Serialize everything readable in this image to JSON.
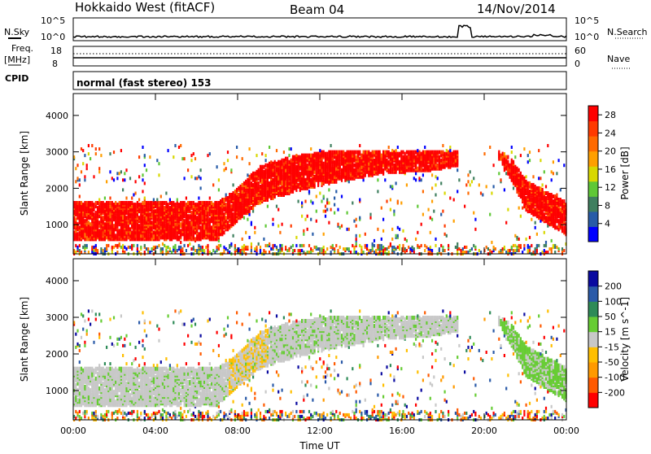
{
  "header": {
    "station": "Hokkaido West (fitACF)",
    "beam": "Beam 04",
    "date": "14/Nov/2014"
  },
  "strips": {
    "nsky_label": "N.Sky",
    "nsky_ticks": [
      "10^5",
      "10^0"
    ],
    "nsearch_label": "N.Search",
    "nsearch_ticks": [
      "10^5",
      "10^0"
    ],
    "freq_label": "Freq.",
    "freq_unit": "[MHz]",
    "freq_ticks": [
      "18",
      "8"
    ],
    "nave_label": "Nave",
    "nave_ticks": [
      "60",
      "0"
    ],
    "cpid_label": "CPID",
    "cpid_value": "normal (fast stereo) 153"
  },
  "colors": {
    "power_scale": [
      "#0000ff",
      "#285ca8",
      "#3f7f5f",
      "#5fc836",
      "#d8d800",
      "#ff9f00",
      "#ff6a00",
      "#ff3a00",
      "#ff0000"
    ],
    "velocity_scale": [
      "#ff0000",
      "#ff5a00",
      "#ff9a00",
      "#ffbf00",
      "#c8c8c8",
      "#66cc33",
      "#2e8b57",
      "#2a5aa8",
      "#0a0aa0"
    ],
    "axis": "#000000"
  },
  "chart_data": [
    {
      "type": "heatmap",
      "panel": "power",
      "ylabel": "Slant Range [km]",
      "yticks": [
        "1000",
        "2000",
        "3000",
        "4000"
      ],
      "ylim": [
        200,
        4600
      ],
      "xticks": [
        "00:00",
        "04:00",
        "08:00",
        "12:00",
        "16:00",
        "20:00",
        "00:00"
      ],
      "xlim_hours": [
        0,
        24
      ],
      "colorbar_label": "Power [dB]",
      "colorbar_ticks": [
        "4",
        "8",
        "12",
        "16",
        "20",
        "24",
        "28"
      ],
      "colorbar_range": [
        0,
        30
      ],
      "lower_edge_km": [
        [
          0,
          600
        ],
        [
          7,
          600
        ],
        [
          8,
          1100
        ],
        [
          9,
          1600
        ],
        [
          11,
          1950
        ],
        [
          13,
          2200
        ],
        [
          15,
          2400
        ],
        [
          17.5,
          2500
        ],
        [
          18.6,
          2600
        ],
        [
          20.7,
          2800
        ],
        [
          21.3,
          2200
        ],
        [
          22,
          1400
        ],
        [
          24,
          700
        ]
      ],
      "upper_edge_km": [
        [
          0,
          1600
        ],
        [
          7,
          1600
        ],
        [
          8,
          2000
        ],
        [
          9,
          2600
        ],
        [
          10.5,
          2850
        ],
        [
          12,
          3000
        ],
        [
          18.6,
          3000
        ],
        [
          20.7,
          3000
        ],
        [
          21.3,
          2800
        ],
        [
          22,
          2200
        ],
        [
          24,
          1600
        ]
      ],
      "gap_hours": [
        18.7,
        20.6
      ]
    },
    {
      "type": "heatmap",
      "panel": "velocity",
      "ylabel": "Slant Range [km]",
      "yticks": [
        "1000",
        "2000",
        "3000",
        "4000"
      ],
      "ylim": [
        200,
        4600
      ],
      "xticks": [
        "00:00",
        "04:00",
        "08:00",
        "12:00",
        "16:00",
        "20:00",
        "00:00"
      ],
      "xlim_hours": [
        0,
        24
      ],
      "xlabel": "Time UT",
      "colorbar_label": "Velocity [m s^-1]",
      "colorbar_ticks": [
        "-200",
        "-100",
        "-50",
        "-15",
        "15",
        "50",
        "100",
        "200"
      ],
      "colorbar_range": [
        -250,
        250
      ]
    }
  ]
}
